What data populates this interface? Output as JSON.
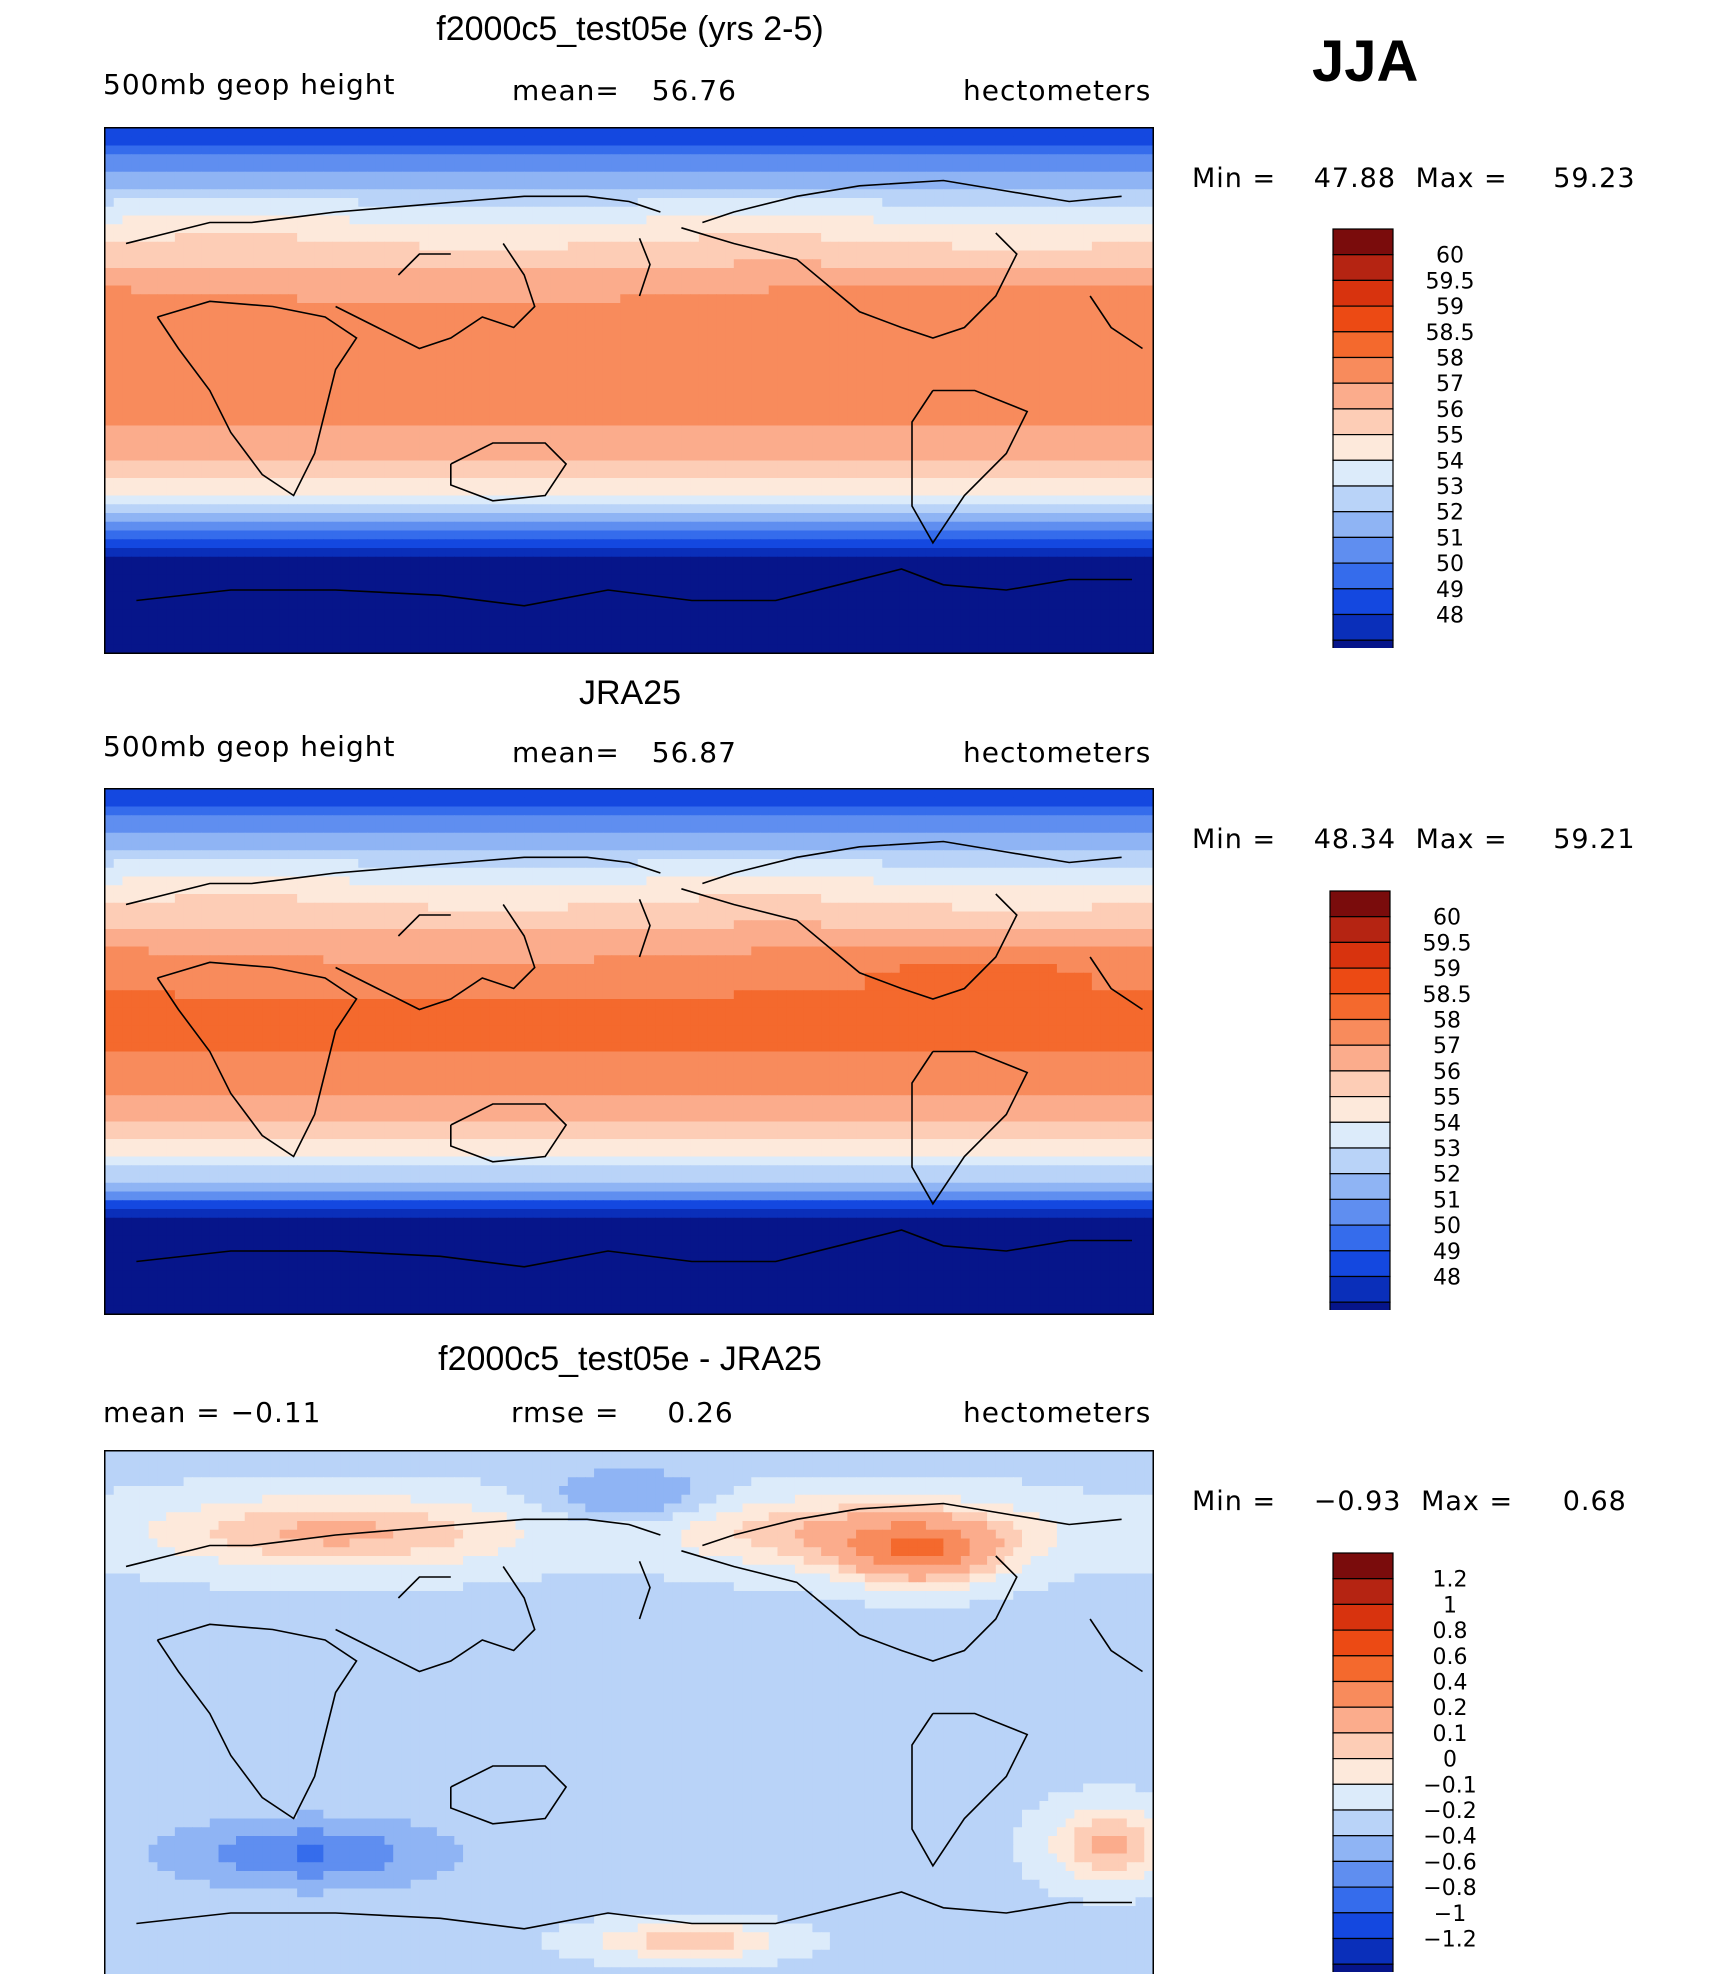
{
  "season_label": "JJA",
  "chart_data": [
    {
      "type": "heatmap",
      "title": "f2000c5_test05e (yrs 2-5)",
      "left_label": "500mb geop height",
      "center_prefix": "mean=",
      "center_value": "56.76",
      "units": "hectometers",
      "min_label": "Min =",
      "min_value": "47.88",
      "max_label": "Max =",
      "max_value": "59.23",
      "field": "500mb geopotential height",
      "colorbar": {
        "levels": [
          "60",
          "59.5",
          "59",
          "58.5",
          "58",
          "57",
          "56",
          "55",
          "54",
          "53",
          "52",
          "51",
          "50",
          "49",
          "48"
        ],
        "colors": [
          "#7a0c0c",
          "#b52412",
          "#d8330e",
          "#ec4a14",
          "#f4692d",
          "#f88b5c",
          "#fbac8c",
          "#fdcdb6",
          "#fde9db",
          "#dcebfa",
          "#b9d3f8",
          "#8fb4f4",
          "#5f8ef0",
          "#356cec",
          "#1448e0",
          "#0a2fba",
          "#06158a"
        ]
      }
    },
    {
      "type": "heatmap",
      "title": "JRA25",
      "left_label": "500mb geop height",
      "center_prefix": "mean=",
      "center_value": "56.87",
      "units": "hectometers",
      "min_label": "Min =",
      "min_value": "48.34",
      "max_label": "Max =",
      "max_value": "59.21",
      "field": "500mb geopotential height",
      "colorbar": {
        "levels": [
          "60",
          "59.5",
          "59",
          "58.5",
          "58",
          "57",
          "56",
          "55",
          "54",
          "53",
          "52",
          "51",
          "50",
          "49",
          "48"
        ],
        "colors": [
          "#7a0c0c",
          "#b52412",
          "#d8330e",
          "#ec4a14",
          "#f4692d",
          "#f88b5c",
          "#fbac8c",
          "#fdcdb6",
          "#fde9db",
          "#dcebfa",
          "#b9d3f8",
          "#8fb4f4",
          "#5f8ef0",
          "#356cec",
          "#1448e0",
          "#0a2fba",
          "#06158a"
        ]
      }
    },
    {
      "type": "heatmap",
      "title": "f2000c5_test05e - JRA25",
      "left_label": "mean = −0.11",
      "center_prefix": "rmse =",
      "center_value": "0.26",
      "units": "hectometers",
      "min_label": "Min =",
      "min_value": "−0.93",
      "max_label": "Max =",
      "max_value": "0.68",
      "field": "difference (model - reanalysis)",
      "colorbar": {
        "levels": [
          "1.2",
          "1",
          "0.8",
          "0.6",
          "0.4",
          "0.2",
          "0.1",
          "0",
          "−0.1",
          "−0.2",
          "−0.4",
          "−0.6",
          "−0.8",
          "−1",
          "−1.2"
        ],
        "colors": [
          "#7a0c0c",
          "#b52412",
          "#d8330e",
          "#ec4a14",
          "#f4692d",
          "#f88b5c",
          "#fbac8c",
          "#fdcdb6",
          "#fde9db",
          "#dcebfa",
          "#b9d3f8",
          "#8fb4f4",
          "#5f8ef0",
          "#356cec",
          "#1448e0",
          "#0a2fba",
          "#06158a"
        ]
      }
    }
  ]
}
